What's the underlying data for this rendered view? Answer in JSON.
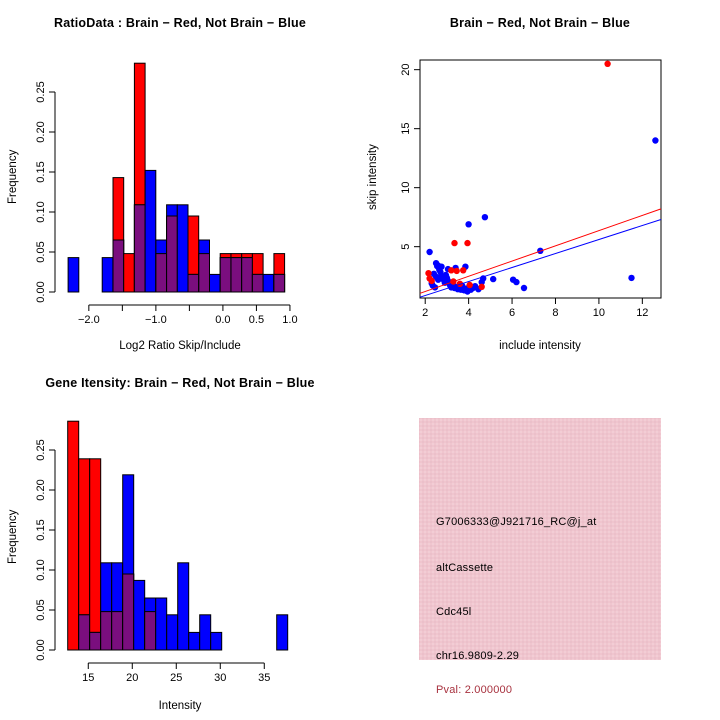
{
  "colors": {
    "brain_red": "#FF0000",
    "not_brain_blue": "#0000FF",
    "overlap_purple": "#7A0E7E",
    "axis_black": "#000000",
    "info_bg": "#F0C5CE",
    "pval_text": "#A8323F"
  },
  "chart_data": [
    {
      "type": "bar",
      "subtype": "overlaid-histogram",
      "title": "RatioData : Brain − Red, Not Brain − Blue",
      "xlabel": "Log2 Ratio Skip/Include",
      "ylabel": "Frequency",
      "xlim": [
        -2.46,
        1.15
      ],
      "ylim": [
        0,
        0.29
      ],
      "grid": false,
      "x_ticks": [
        -2.0,
        -1.5,
        -1.0,
        -0.5,
        0.0,
        0.5,
        1.0
      ],
      "x_tick_labels": [
        "−2.0",
        "",
        "−1.0",
        "",
        "0.0",
        "0.5",
        "1.0"
      ],
      "y_ticks": [
        0,
        0.05,
        0.1,
        0.15,
        0.2,
        0.25
      ],
      "y_tick_labels": [
        "0.00",
        "0.05",
        "0.10",
        "0.15",
        "0.20",
        "0.25"
      ],
      "bin_width": 0.16,
      "bars": [
        {
          "x": -2.31,
          "red": 0,
          "blue": 0.043
        },
        {
          "x": -1.8,
          "red": 0,
          "blue": 0.043
        },
        {
          "x": -1.64,
          "red": 0.143,
          "blue": 0.065
        },
        {
          "x": -1.48,
          "red": 0.048,
          "blue": 0
        },
        {
          "x": -1.32,
          "red": 0.286,
          "blue": 0.109
        },
        {
          "x": -1.16,
          "red": 0,
          "blue": 0.152
        },
        {
          "x": -1.0,
          "red": 0.048,
          "blue": 0.065
        },
        {
          "x": -0.84,
          "red": 0.095,
          "blue": 0.109
        },
        {
          "x": -0.68,
          "red": 0,
          "blue": 0.109
        },
        {
          "x": -0.52,
          "red": 0.095,
          "blue": 0.022
        },
        {
          "x": -0.36,
          "red": 0.048,
          "blue": 0.065
        },
        {
          "x": -0.2,
          "red": 0,
          "blue": 0.022
        },
        {
          "x": -0.04,
          "red": 0.048,
          "blue": 0.043
        },
        {
          "x": 0.12,
          "red": 0.048,
          "blue": 0.043
        },
        {
          "x": 0.28,
          "red": 0.048,
          "blue": 0.043
        },
        {
          "x": 0.44,
          "red": 0.048,
          "blue": 0.022
        },
        {
          "x": 0.6,
          "red": 0,
          "blue": 0.022
        },
        {
          "x": 0.76,
          "red": 0.048,
          "blue": 0.022
        }
      ]
    },
    {
      "type": "scatter",
      "title": "Brain − Red, Not Brain − Blue",
      "xlabel": "include intensity",
      "ylabel": "skip intensity",
      "xlim": [
        1.76,
        12.86
      ],
      "ylim": [
        0.65,
        20.82
      ],
      "grid": false,
      "x_ticks": [
        2,
        4,
        6,
        8,
        10,
        12
      ],
      "x_tick_labels": [
        "2",
        "4",
        "6",
        "8",
        "10",
        "12"
      ],
      "y_ticks": [
        5,
        10,
        15,
        20
      ],
      "y_tick_labels": [
        "5",
        "10",
        "15",
        "20"
      ],
      "series": [
        {
          "name": "Not Brain",
          "color": "not_brain_blue",
          "points": [
            [
              12.6,
              14.0
            ],
            [
              11.5,
              2.35
            ],
            [
              7.3,
              4.65
            ],
            [
              4.75,
              7.5
            ],
            [
              4.0,
              6.9
            ],
            [
              2.2,
              4.55
            ],
            [
              6.05,
              2.2
            ],
            [
              6.2,
              2.0
            ],
            [
              6.55,
              1.5
            ],
            [
              5.13,
              2.25
            ],
            [
              4.67,
              2.3
            ],
            [
              4.6,
              2.0
            ],
            [
              2.5,
              3.6
            ],
            [
              2.55,
              3.35
            ],
            [
              2.65,
              3.05
            ],
            [
              2.4,
              2.7
            ],
            [
              2.5,
              2.45
            ],
            [
              2.6,
              2.2
            ],
            [
              2.7,
              2.85
            ],
            [
              2.75,
              2.5
            ],
            [
              2.85,
              2.2
            ],
            [
              2.9,
              1.95
            ],
            [
              2.95,
              2.6
            ],
            [
              3.0,
              2.35
            ],
            [
              3.05,
              2.1
            ],
            [
              3.1,
              1.9
            ],
            [
              3.15,
              1.7
            ],
            [
              3.2,
              1.55
            ],
            [
              3.3,
              1.7
            ],
            [
              3.35,
              1.5
            ],
            [
              3.45,
              1.6
            ],
            [
              3.5,
              1.4
            ],
            [
              3.6,
              1.55
            ],
            [
              3.65,
              1.35
            ],
            [
              3.7,
              1.7
            ],
            [
              3.75,
              1.5
            ],
            [
              3.8,
              1.3
            ],
            [
              3.9,
              1.45
            ],
            [
              3.95,
              1.2
            ],
            [
              4.05,
              1.55
            ],
            [
              4.1,
              1.35
            ],
            [
              4.2,
              1.5
            ],
            [
              4.3,
              1.65
            ],
            [
              2.3,
              1.9
            ],
            [
              2.35,
              1.7
            ],
            [
              2.45,
              1.55
            ],
            [
              3.85,
              3.3
            ],
            [
              3.4,
              3.2
            ],
            [
              2.6,
              3.4
            ],
            [
              3.05,
              3.1
            ],
            [
              2.75,
              3.3
            ],
            [
              4.45,
              1.4
            ]
          ]
        },
        {
          "name": "Brain",
          "color": "brain_red",
          "points": [
            [
              10.4,
              20.5
            ],
            [
              3.35,
              5.3
            ],
            [
              3.95,
              5.3
            ],
            [
              2.15,
              2.75
            ],
            [
              2.2,
              2.3
            ],
            [
              2.3,
              2.1
            ],
            [
              3.2,
              3.0
            ],
            [
              3.45,
              2.95
            ],
            [
              3.75,
              3.0
            ],
            [
              3.3,
              2.05
            ],
            [
              3.6,
              1.85
            ],
            [
              4.05,
              1.75
            ],
            [
              4.6,
              1.6
            ]
          ]
        }
      ],
      "fit_lines": [
        {
          "color": "brain_red",
          "x1": 1.76,
          "y1": 1.05,
          "x2": 12.86,
          "y2": 8.2
        },
        {
          "color": "not_brain_blue",
          "x1": 1.76,
          "y1": 0.72,
          "x2": 12.86,
          "y2": 7.3
        }
      ]
    },
    {
      "type": "bar",
      "subtype": "overlaid-histogram",
      "title": "Gene Itensity: Brain − Red, Not Brain − Blue",
      "xlabel": "Intensity",
      "ylabel": "Frequency",
      "xlim": [
        11.56,
        39.06
      ],
      "ylim": [
        0,
        0.3
      ],
      "grid": false,
      "x_ticks": [
        15,
        20,
        25,
        30,
        35
      ],
      "x_tick_labels": [
        "15",
        "20",
        "25",
        "30",
        "35"
      ],
      "y_ticks": [
        0,
        0.05,
        0.1,
        0.15,
        0.2,
        0.25
      ],
      "y_tick_labels": [
        "0.00",
        "0.05",
        "0.10",
        "0.15",
        "0.20",
        "0.25"
      ],
      "bin_width": 1.25,
      "bars": [
        {
          "x": 12.66,
          "red": 0.286,
          "blue": 0
        },
        {
          "x": 13.91,
          "red": 0.239,
          "blue": 0.044
        },
        {
          "x": 15.16,
          "red": 0.239,
          "blue": 0.022
        },
        {
          "x": 16.41,
          "red": 0.048,
          "blue": 0.109
        },
        {
          "x": 17.66,
          "red": 0.048,
          "blue": 0.109
        },
        {
          "x": 18.91,
          "red": 0.095,
          "blue": 0.219
        },
        {
          "x": 20.16,
          "red": 0,
          "blue": 0.087
        },
        {
          "x": 21.41,
          "red": 0.048,
          "blue": 0.065
        },
        {
          "x": 22.66,
          "red": 0,
          "blue": 0.065
        },
        {
          "x": 23.91,
          "red": 0,
          "blue": 0.044
        },
        {
          "x": 25.16,
          "red": 0,
          "blue": 0.109
        },
        {
          "x": 26.41,
          "red": 0,
          "blue": 0.022
        },
        {
          "x": 27.66,
          "red": 0,
          "blue": 0.044
        },
        {
          "x": 28.91,
          "red": 0,
          "blue": 0.022
        },
        {
          "x": 36.41,
          "red": 0,
          "blue": 0.044
        }
      ]
    }
  ],
  "info_panel": {
    "probe_id": "G7006333@J921716_RC@j_at",
    "splice_type": "altCassette",
    "gene_name": "Cdc45l",
    "location": "chr16.9809-2.29",
    "pval": "Pval: 2.000000"
  }
}
